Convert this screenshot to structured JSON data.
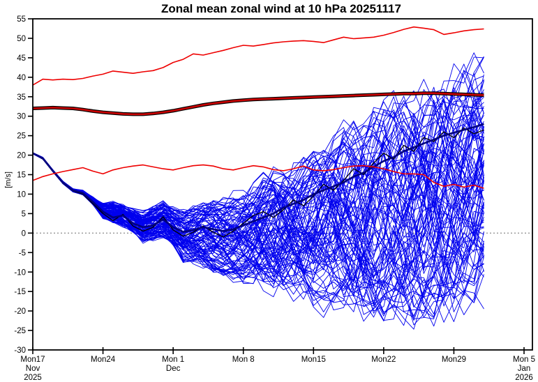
{
  "chart_data": {
    "type": "line",
    "title": "Zonal mean zonal wind at 10 hPa 20251117",
    "ylabel": "[m/s]",
    "ylim": [
      -30,
      55
    ],
    "ytick_step": 5,
    "x_axis": {
      "last_tick_day": 49,
      "ticks": [
        {
          "day": 0,
          "lines": [
            "Mon17",
            "Nov",
            "2025"
          ]
        },
        {
          "day": 7,
          "lines": [
            "Mon24"
          ]
        },
        {
          "day": 14,
          "lines": [
            "Mon 1",
            "Dec"
          ]
        },
        {
          "day": 21,
          "lines": [
            "Mon 8"
          ]
        },
        {
          "day": 28,
          "lines": [
            "Mon15"
          ]
        },
        {
          "day": 35,
          "lines": [
            "Mon22"
          ]
        },
        {
          "day": 42,
          "lines": [
            "Mon29"
          ]
        },
        {
          "day": 49,
          "lines": [
            "Mon 5",
            "Jan",
            "2026"
          ]
        }
      ]
    },
    "zero_line": {
      "value": 0,
      "color": "#8a8a8a",
      "style": "dotted"
    },
    "colors": {
      "ensemble_member": "#0000ee",
      "ensemble_mean": "#000080",
      "control": "#000000",
      "climatology_core": "#cc0000",
      "climatology_edge": "#000000",
      "climatology_percentile": "#ee0000",
      "axis": "#000000"
    },
    "series": {
      "climatology_mean": {
        "name": "climatological mean",
        "days": [
          0,
          1,
          2,
          3,
          4,
          5,
          6,
          7,
          8,
          9,
          10,
          11,
          12,
          13,
          14,
          15,
          16,
          17,
          18,
          19,
          20,
          21,
          22,
          23,
          24,
          25,
          26,
          27,
          28,
          29,
          30,
          31,
          32,
          33,
          34,
          35,
          36,
          37,
          38,
          39,
          40,
          41,
          42,
          43,
          44,
          45
        ],
        "values": [
          32.0,
          32.1,
          32.2,
          32.1,
          32.0,
          31.7,
          31.3,
          31.0,
          30.8,
          30.6,
          30.5,
          30.5,
          30.7,
          31.0,
          31.4,
          31.9,
          32.4,
          32.9,
          33.3,
          33.6,
          33.9,
          34.1,
          34.3,
          34.4,
          34.5,
          34.6,
          34.7,
          34.8,
          34.9,
          35.0,
          35.1,
          35.2,
          35.3,
          35.4,
          35.5,
          35.6,
          35.7,
          35.8,
          35.8,
          35.9,
          35.9,
          35.8,
          35.7,
          35.6,
          35.5,
          35.4
        ]
      },
      "climatology_upper": {
        "name": "climatology upper percentile",
        "days": [
          0,
          1,
          2,
          3,
          4,
          5,
          6,
          7,
          8,
          9,
          10,
          11,
          12,
          13,
          14,
          15,
          16,
          17,
          18,
          19,
          20,
          21,
          22,
          23,
          24,
          25,
          26,
          27,
          28,
          29,
          30,
          31,
          32,
          33,
          34,
          35,
          36,
          37,
          38,
          39,
          40,
          41,
          42,
          43,
          44,
          45
        ],
        "values": [
          38.0,
          39.5,
          39.3,
          39.5,
          39.4,
          39.7,
          40.3,
          40.8,
          41.6,
          41.3,
          41.0,
          41.4,
          41.7,
          42.5,
          43.8,
          44.6,
          46.0,
          45.7,
          46.3,
          46.9,
          47.6,
          48.2,
          48.0,
          48.4,
          48.8,
          49.1,
          49.3,
          49.4,
          49.2,
          48.9,
          49.6,
          50.3,
          49.9,
          50.1,
          50.3,
          50.8,
          51.5,
          52.3,
          52.9,
          52.6,
          52.2,
          51.0,
          51.4,
          51.9,
          52.2,
          52.4
        ]
      },
      "climatology_lower": {
        "name": "climatology lower percentile",
        "days": [
          0,
          1,
          2,
          3,
          4,
          5,
          6,
          7,
          8,
          9,
          10,
          11,
          12,
          13,
          14,
          15,
          16,
          17,
          18,
          19,
          20,
          21,
          22,
          23,
          24,
          25,
          26,
          27,
          28,
          29,
          30,
          31,
          32,
          33,
          34,
          35,
          36,
          37,
          38,
          39,
          40,
          41,
          42,
          43,
          44,
          45
        ],
        "values": [
          13.5,
          14.5,
          15.2,
          15.8,
          16.3,
          16.8,
          15.9,
          15.2,
          16.2,
          16.8,
          17.2,
          17.5,
          17.0,
          16.5,
          16.2,
          16.8,
          17.3,
          17.5,
          17.2,
          16.5,
          16.2,
          16.8,
          17.3,
          17.0,
          16.3,
          16.0,
          16.5,
          17.2,
          16.2,
          16.0,
          16.3,
          16.8,
          17.2,
          17.3,
          17.0,
          16.5,
          15.8,
          15.2,
          15.2,
          15.0,
          13.0,
          12.0,
          12.5,
          11.8,
          12.3,
          11.5
        ]
      },
      "ensemble_mean": {
        "name": "ensemble mean",
        "days": [
          0,
          1,
          2,
          3,
          4,
          5,
          6,
          7,
          8,
          9,
          10,
          11,
          12,
          13,
          14,
          15,
          16,
          17,
          18,
          19,
          20,
          21,
          22,
          23,
          24,
          25,
          26,
          27,
          28,
          29,
          30,
          31,
          32,
          33,
          34,
          35,
          36,
          37,
          38,
          39,
          40,
          41,
          42,
          43,
          44,
          45
        ],
        "values": [
          20.5,
          19.2,
          16.0,
          13.0,
          11.0,
          10.3,
          8.0,
          5.5,
          4.0,
          4.5,
          2.5,
          1.5,
          2.0,
          3.5,
          1.5,
          0.3,
          0.8,
          1.5,
          1.0,
          0.5,
          1.0,
          2.0,
          3.0,
          4.0,
          5.0,
          6.5,
          7.5,
          8.5,
          10.0,
          11.0,
          12.0,
          13.0,
          14.5,
          15.5,
          17.0,
          18.5,
          19.5,
          21.0,
          22.0,
          23.0,
          24.0,
          25.0,
          25.8,
          26.5,
          27.2,
          28.0
        ]
      },
      "control": {
        "name": "control forecast",
        "days": [
          0,
          1,
          2,
          3,
          4,
          5,
          6,
          7,
          8,
          9,
          10,
          11,
          12,
          13,
          14,
          15,
          16,
          17,
          18,
          19,
          20,
          21,
          22,
          23,
          24,
          25,
          26,
          27,
          28,
          29,
          30,
          31,
          32,
          33,
          34,
          35,
          36,
          37,
          38,
          39,
          40,
          41,
          42,
          43,
          44,
          45
        ],
        "values": [
          20.5,
          19.0,
          15.8,
          12.8,
          10.8,
          10.0,
          7.5,
          5.0,
          3.2,
          4.8,
          1.8,
          0.5,
          1.5,
          4.2,
          0.8,
          -0.8,
          0.2,
          1.8,
          0.2,
          -1.0,
          0.5,
          2.5,
          4.5,
          5.5,
          4.0,
          6.0,
          8.5,
          7.0,
          9.5,
          12.5,
          11.0,
          13.5,
          16.5,
          15.0,
          18.0,
          20.5,
          19.0,
          22.5,
          21.0,
          24.5,
          23.5,
          26.0,
          24.5,
          27.0,
          25.5,
          26.5
        ]
      },
      "ensemble_members": {
        "name": "ensemble members",
        "count": 100,
        "seed": 20251117,
        "last_day": 45,
        "envelope_days": [
          0,
          1,
          2,
          3,
          4,
          5,
          6,
          7,
          8,
          9,
          10,
          11,
          12,
          13,
          14,
          15,
          17,
          19,
          21,
          24,
          27,
          30,
          33,
          36,
          39,
          42,
          45
        ],
        "envelope_min": [
          20.3,
          18.9,
          15.7,
          12.6,
          10.5,
          9.7,
          6.9,
          3.3,
          2.0,
          1.0,
          -0.5,
          -3.0,
          -2.5,
          -2.0,
          -4.0,
          -8.0,
          -10.0,
          -13.0,
          -15.0,
          -18.5,
          -21.0,
          -23.5,
          -24.5,
          -26.5,
          -28.3,
          -25.5,
          -20.5
        ],
        "envelope_max": [
          20.7,
          19.5,
          16.3,
          13.4,
          11.5,
          11.1,
          9.5,
          8.0,
          8.5,
          8.0,
          7.0,
          6.0,
          7.5,
          9.0,
          7.5,
          7.0,
          9.0,
          10.5,
          13.0,
          19.0,
          24.0,
          29.0,
          34.0,
          39.5,
          43.5,
          46.5,
          49.5
        ]
      }
    }
  }
}
